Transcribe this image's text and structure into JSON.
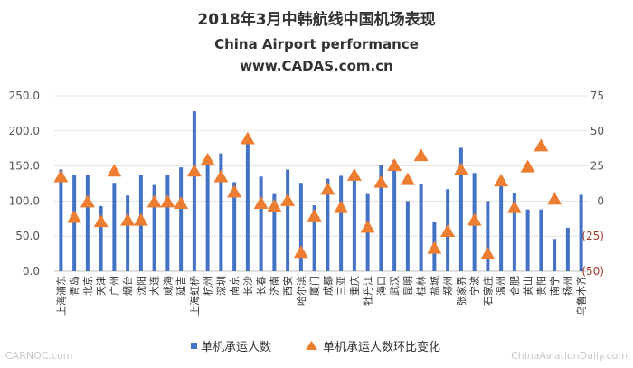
{
  "chart_data": {
    "type": "bar+scatter",
    "title": "2018年3月中韩航线中国机场表现",
    "subtitle": "China Airport performance",
    "subtitle2": "www.CADAS.com.cn",
    "categories": [
      "上海浦东",
      "青岛",
      "北京",
      "天津",
      "广州",
      "烟台",
      "沈阳",
      "大连",
      "威海",
      "延吉",
      "上海虹桥",
      "杭州",
      "深圳",
      "南京",
      "长沙",
      "长春",
      "济南",
      "西安",
      "哈尔滨",
      "厦门",
      "成都",
      "三亚",
      "重庆",
      "牡丹江",
      "海口",
      "武汉",
      "昆明",
      "桂林",
      "盐城",
      "郑州",
      "张家界",
      "宁波",
      "石家庄",
      "温州",
      "合肥",
      "黄山",
      "贵阳",
      "南宁",
      "扬州",
      "乌鲁木齐"
    ],
    "y_left": {
      "ticks": [
        "0.0",
        "50.0",
        "100.0",
        "150.0",
        "200.0",
        "250.0"
      ],
      "ylim": [
        0,
        250
      ]
    },
    "y_right": {
      "ticks": [
        "(50)",
        "(25)",
        "0",
        "25",
        "50",
        "75"
      ],
      "ylim": [
        -50,
        75
      ]
    },
    "series": [
      {
        "name": "单机承运人数",
        "axis": "left",
        "color": "#4472c4",
        "values": [
          145,
          137,
          137,
          93,
          126,
          108,
          137,
          123,
          137,
          148,
          228,
          160,
          168,
          127,
          185,
          135,
          110,
          145,
          126,
          94,
          132,
          136,
          133,
          110,
          152,
          158,
          100,
          124,
          71,
          117,
          176,
          140,
          100,
          125,
          112,
          88,
          88,
          46,
          62,
          109
        ]
      },
      {
        "name": "单机承运人数环比变化",
        "axis": "right",
        "color": "#ed7d31",
        "values": [
          18,
          -11,
          0,
          -14,
          22,
          -13,
          -13,
          0,
          0,
          -1,
          22,
          30,
          18,
          7,
          45,
          -1,
          -3,
          1,
          -36,
          -10,
          9,
          -4,
          19,
          -18,
          14,
          26,
          16,
          33,
          -33,
          -21,
          23,
          -13,
          -37,
          15,
          -4,
          25,
          40,
          2,
          null,
          null
        ]
      }
    ],
    "grid": true,
    "legend_position": "bottom"
  },
  "watermark_left": "CARNOC.com",
  "watermark_right": "ChinaAviationDaily.com"
}
